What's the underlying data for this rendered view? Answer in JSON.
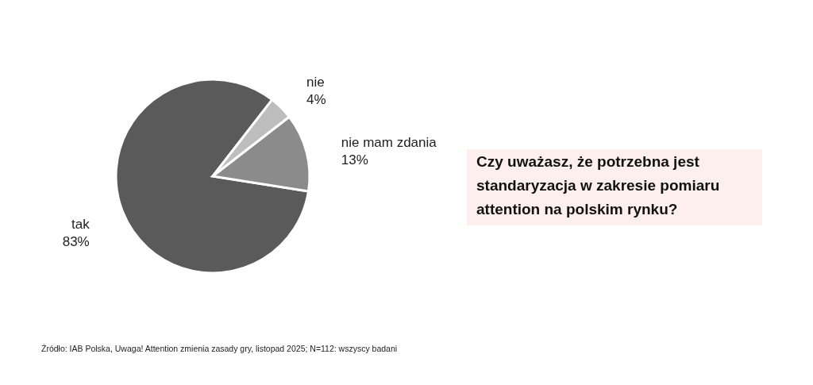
{
  "chart_data": {
    "type": "pie",
    "title": "Czy uważasz, że potrzebna jest standaryzacja w zakresie pomiaru attention na polskim rynku?",
    "categories": [
      "tak",
      "nie",
      "nie mam zdania"
    ],
    "values": [
      83,
      4,
      13
    ],
    "value_labels": [
      "83%",
      "4%",
      "13%"
    ],
    "colors": [
      "#5a5a5a",
      "#bdbdbd",
      "#8a8b8a"
    ],
    "annotations": [
      "Źródło: IAB Polska, Uwaga! Attention zmienia zasady gry, listopad 2025; N=112: wszyscy badani"
    ]
  }
}
